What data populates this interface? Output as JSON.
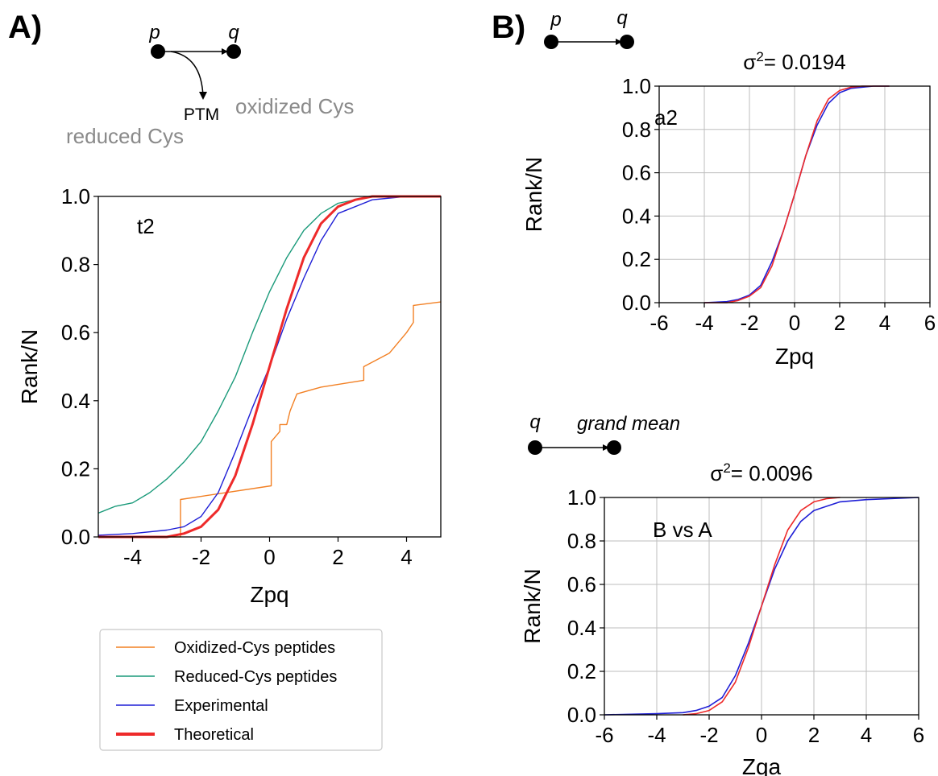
{
  "panels": {
    "a": {
      "letter": "A)",
      "node_p": "p",
      "node_q": "q",
      "ptm_label": "PTM",
      "oxidized_label": "oxidized Cys",
      "reduced_label": "reduced Cys"
    },
    "b": {
      "letter": "B)",
      "top_node_p": "p",
      "top_node_q": "q",
      "bottom_node_q": "q",
      "bottom_node_gm": "grand mean"
    }
  },
  "colors": {
    "oxidized": "#f28024",
    "reduced": "#1a9a7a",
    "experimental": "#1f1fd6",
    "theoretical": "#ee2a2a"
  },
  "legend": {
    "items": [
      {
        "label": "Oxidized-Cys peptides",
        "color": "#f28024"
      },
      {
        "label": "Reduced-Cys peptides",
        "color": "#1a9a7a"
      },
      {
        "label": "Experimental",
        "color": "#1f1fd6"
      },
      {
        "label": "Theoretical",
        "color": "#ee2a2a"
      }
    ]
  },
  "chart_data": [
    {
      "id": "t2",
      "type": "line",
      "annotation": "t2",
      "title": "",
      "xlabel": "Zpq",
      "ylabel": "Rank/N",
      "xlim": [
        -5,
        5
      ],
      "ylim": [
        0,
        1
      ],
      "xticks": [
        -4,
        -2,
        0,
        2,
        4
      ],
      "xtick_labels": [
        "-4",
        "-2",
        "0",
        "2",
        "4"
      ],
      "yticks": [
        0,
        0.2,
        0.4,
        0.6,
        0.8,
        1.0
      ],
      "ytick_labels": [
        "0.0",
        "0.2",
        "0.4",
        "0.6",
        "0.8",
        "1.0"
      ],
      "grid": false,
      "series": [
        {
          "name": "Oxidized-Cys peptides",
          "style": "step",
          "x": [
            -5,
            -2.6,
            -2.6,
            0.05,
            0.05,
            0.3,
            0.3,
            0.5,
            0.6,
            0.8,
            1.5,
            2.75,
            2.75,
            3.5,
            4.0,
            4.2,
            4.2,
            5.0
          ],
          "y": [
            0.0,
            0.0,
            0.11,
            0.15,
            0.28,
            0.31,
            0.33,
            0.33,
            0.37,
            0.42,
            0.44,
            0.46,
            0.5,
            0.54,
            0.6,
            0.63,
            0.68,
            0.69
          ]
        },
        {
          "name": "Reduced-Cys peptides",
          "style": "line",
          "x": [
            -5,
            -4.5,
            -4.0,
            -3.5,
            -3.0,
            -2.5,
            -2.0,
            -1.5,
            -1.0,
            -0.5,
            0.0,
            0.5,
            1.0,
            1.5,
            2.0,
            2.5,
            3.0,
            4.0,
            5.0
          ],
          "y": [
            0.07,
            0.09,
            0.1,
            0.13,
            0.17,
            0.22,
            0.28,
            0.37,
            0.47,
            0.6,
            0.72,
            0.82,
            0.9,
            0.95,
            0.98,
            0.99,
            1.0,
            1.0,
            1.0
          ]
        },
        {
          "name": "Experimental",
          "style": "line",
          "x": [
            -5,
            -4.0,
            -3.0,
            -2.5,
            -2.0,
            -1.5,
            -1.0,
            -0.5,
            0.0,
            0.5,
            1.0,
            1.5,
            2.0,
            2.5,
            3.0,
            4.0,
            5.0
          ],
          "y": [
            0.005,
            0.01,
            0.02,
            0.03,
            0.06,
            0.13,
            0.25,
            0.38,
            0.5,
            0.64,
            0.76,
            0.87,
            0.95,
            0.97,
            0.99,
            1.0,
            1.0
          ]
        },
        {
          "name": "Theoretical",
          "style": "line",
          "width": 3,
          "x": [
            -5,
            -3.5,
            -3.0,
            -2.5,
            -2.0,
            -1.5,
            -1.0,
            -0.5,
            0.0,
            0.5,
            1.0,
            1.5,
            2.0,
            2.5,
            3.0,
            3.5,
            5.0
          ],
          "y": [
            0.0,
            0.0,
            0.0,
            0.01,
            0.03,
            0.08,
            0.18,
            0.33,
            0.5,
            0.67,
            0.82,
            0.92,
            0.97,
            0.99,
            1.0,
            1.0,
            1.0
          ]
        }
      ]
    },
    {
      "id": "a2",
      "type": "line",
      "annotation": "a2",
      "title": "σ²= 0.0194",
      "title_main": "σ",
      "title_sup": "2",
      "title_value": "= 0.0194",
      "xlabel": "Zpq",
      "ylabel": "Rank/N",
      "xlim": [
        -6,
        6
      ],
      "ylim": [
        0,
        1
      ],
      "xticks": [
        -6,
        -4,
        -2,
        0,
        2,
        4,
        6
      ],
      "xtick_labels": [
        "-6",
        "-4",
        "-2",
        "0",
        "2",
        "4",
        "6"
      ],
      "yticks": [
        0,
        0.2,
        0.4,
        0.6,
        0.8,
        1.0
      ],
      "ytick_labels": [
        "0.0",
        "0.2",
        "0.4",
        "0.6",
        "0.8",
        "1.0"
      ],
      "grid": true,
      "series": [
        {
          "name": "Experimental",
          "style": "line",
          "x": [
            -4.0,
            -3.0,
            -2.5,
            -2.0,
            -1.5,
            -1.0,
            -0.5,
            0.0,
            0.5,
            1.0,
            1.5,
            2.0,
            2.5,
            3.0,
            3.5,
            4.2
          ],
          "y": [
            0.0,
            0.005,
            0.015,
            0.035,
            0.08,
            0.19,
            0.33,
            0.5,
            0.68,
            0.82,
            0.92,
            0.97,
            0.99,
            0.995,
            1.0,
            1.0
          ]
        },
        {
          "name": "Theoretical",
          "style": "line",
          "x": [
            -4.0,
            -3.0,
            -2.5,
            -2.0,
            -1.5,
            -1.0,
            -0.5,
            0.0,
            0.5,
            1.0,
            1.5,
            2.0,
            2.5,
            3.0,
            4.2
          ],
          "y": [
            0.0,
            0.0,
            0.01,
            0.03,
            0.07,
            0.17,
            0.33,
            0.5,
            0.68,
            0.84,
            0.94,
            0.98,
            0.995,
            1.0,
            1.0
          ]
        }
      ]
    },
    {
      "id": "bvsa",
      "type": "line",
      "annotation": "B vs A",
      "title": "σ²= 0.0096",
      "title_main": "σ",
      "title_sup": "2",
      "title_value": "= 0.0096",
      "xlabel": "Zqa",
      "ylabel": "Rank/N",
      "xlim": [
        -6,
        6
      ],
      "ylim": [
        0,
        1
      ],
      "xticks": [
        -6,
        -4,
        -2,
        0,
        2,
        4,
        6
      ],
      "xtick_labels": [
        "-6",
        "-4",
        "-2",
        "0",
        "2",
        "4",
        "6"
      ],
      "yticks": [
        0,
        0.2,
        0.4,
        0.6,
        0.8,
        1.0
      ],
      "ytick_labels": [
        "0.0",
        "0.2",
        "0.4",
        "0.6",
        "0.8",
        "1.0"
      ],
      "grid": true,
      "series": [
        {
          "name": "Experimental",
          "style": "line",
          "x": [
            -6.0,
            -4.0,
            -3.0,
            -2.5,
            -2.0,
            -1.5,
            -1.0,
            -0.5,
            0.0,
            0.5,
            1.0,
            1.5,
            2.0,
            2.5,
            3.0,
            4.0,
            6.0
          ],
          "y": [
            0.0,
            0.005,
            0.01,
            0.02,
            0.04,
            0.08,
            0.18,
            0.33,
            0.5,
            0.67,
            0.8,
            0.89,
            0.94,
            0.96,
            0.98,
            0.99,
            1.0
          ]
        },
        {
          "name": "Theoretical",
          "style": "line",
          "x": [
            -3.0,
            -2.5,
            -2.0,
            -1.5,
            -1.0,
            -0.5,
            0.0,
            0.5,
            1.0,
            1.5,
            2.0,
            2.5,
            3.0
          ],
          "y": [
            0.0,
            0.005,
            0.02,
            0.06,
            0.15,
            0.31,
            0.5,
            0.69,
            0.85,
            0.94,
            0.98,
            0.995,
            1.0
          ]
        }
      ]
    }
  ]
}
